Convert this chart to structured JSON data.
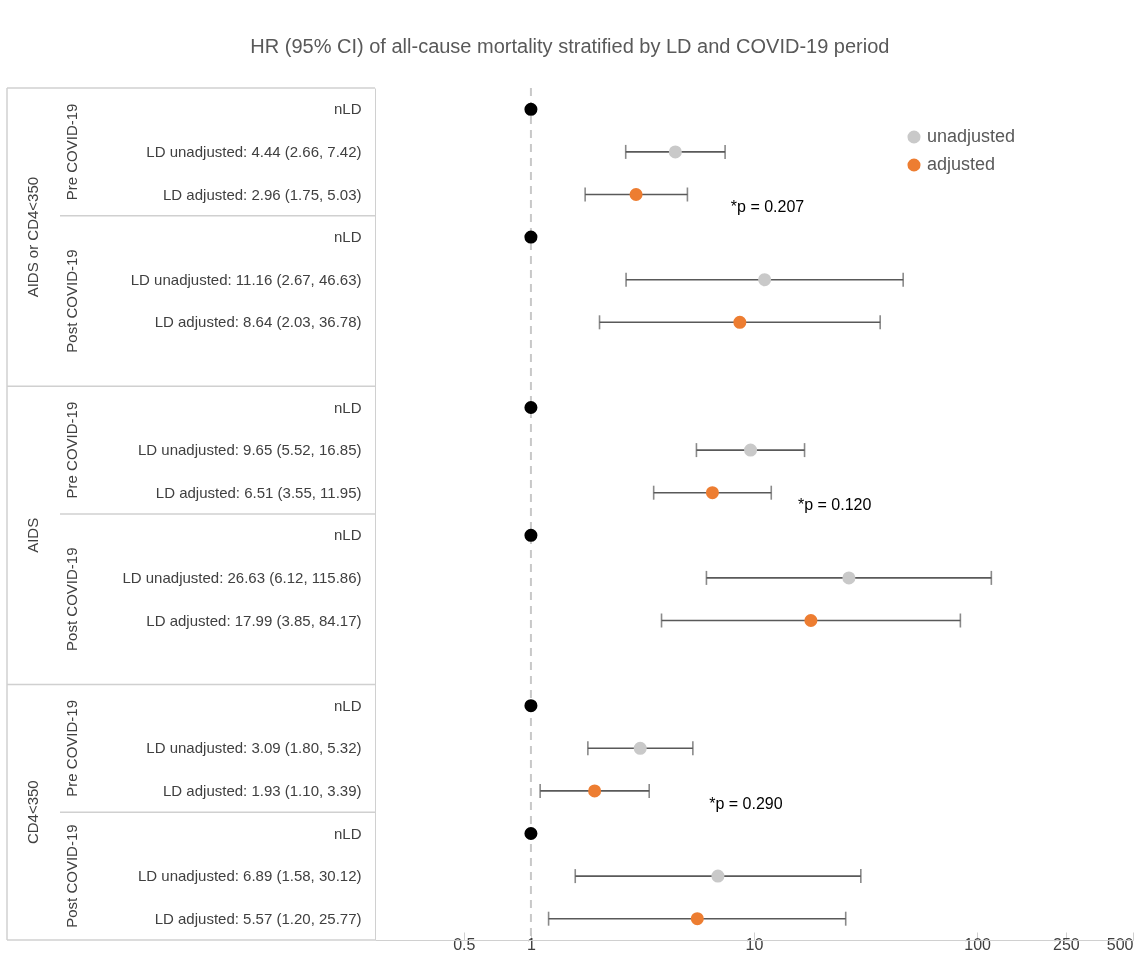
{
  "chart_data": {
    "type": "scatter",
    "orientation": "horizontal",
    "title": "HR (95% CI) of all-cause mortality stratified by LD and COVID-19 period",
    "categories": [
      "nLD",
      "LD unadjusted: 4.44 (2.66, 7.42)",
      "LD adjusted: 2.96 (1.75, 5.03)",
      "nLD",
      "LD unadjusted: 11.16 (2.67, 46.63)",
      "LD adjusted: 8.64 (2.03, 36.78)",
      null,
      "nLD",
      "LD unadjusted: 9.65 (5.52, 16.85)",
      "LD adjusted: 6.51 (3.55, 11.95)",
      "nLD",
      "LD unadjusted: 26.63 (6.12, 115.86)",
      "LD adjusted: 17.99 (3.85, 84.17)",
      null,
      "nLD",
      "LD unadjusted: 3.09 (1.80, 5.32)",
      "LD adjusted: 1.93 (1.10, 3.39)",
      "nLD",
      "LD unadjusted: 6.89 (1.58, 30.12)",
      "LD adjusted: 5.57 (1.20, 25.77)"
    ],
    "series": [
      {
        "color": "#000000",
        "values": [
          1,
          null,
          null,
          1,
          null,
          null,
          null,
          1,
          null,
          null,
          1,
          null,
          null,
          null,
          1,
          null,
          null,
          1,
          null,
          null
        ]
      },
      {
        "name": "unadjusted",
        "color": "#c9c9c9",
        "values": [
          null,
          4.44,
          null,
          null,
          11.16,
          null,
          null,
          null,
          9.65,
          null,
          null,
          26.63,
          null,
          null,
          null,
          3.09,
          null,
          null,
          6.89,
          null
        ],
        "errors": [
          null,
          [
            2.66,
            7.42
          ],
          null,
          null,
          [
            2.67,
            46.63
          ],
          null,
          null,
          null,
          [
            5.52,
            16.85
          ],
          null,
          null,
          [
            6.12,
            115.86
          ],
          null,
          null,
          null,
          [
            1.8,
            5.32
          ],
          null,
          null,
          [
            1.58,
            30.12
          ],
          null
        ]
      },
      {
        "name": "adjusted",
        "color": "#ed7d31",
        "values": [
          null,
          null,
          2.96,
          null,
          null,
          8.64,
          null,
          null,
          null,
          6.51,
          null,
          null,
          17.99,
          null,
          null,
          null,
          1.93,
          null,
          null,
          5.57
        ],
        "errors": [
          null,
          null,
          [
            1.75,
            5.03
          ],
          null,
          null,
          [
            2.03,
            36.78
          ],
          null,
          null,
          null,
          [
            3.55,
            11.95
          ],
          null,
          null,
          [
            3.85,
            84.17
          ],
          null,
          null,
          null,
          [
            1.1,
            3.39
          ],
          null,
          null,
          [
            1.2,
            25.77
          ]
        ]
      }
    ],
    "log": "x",
    "xlim": [
      0.2,
      500
    ],
    "xticks": [
      0.5,
      1,
      10,
      100,
      250,
      500
    ],
    "ref_lines": [
      {
        "axis": "x",
        "value": 1,
        "color": "#c8c8c8",
        "line_style": "dashed"
      }
    ],
    "annotations": [
      "AIDS or CD4<350",
      "Pre COVID-19",
      "Post COVID-19",
      "AIDS",
      "Pre COVID-19",
      "Post COVID-19",
      "CD4<350",
      "Pre COVID-19",
      "Post COVID-19",
      "*p = 0.207",
      "*p = 0.120",
      "*p = 0.290"
    ],
    "legend": "top right",
    "marker": "circle"
  }
}
